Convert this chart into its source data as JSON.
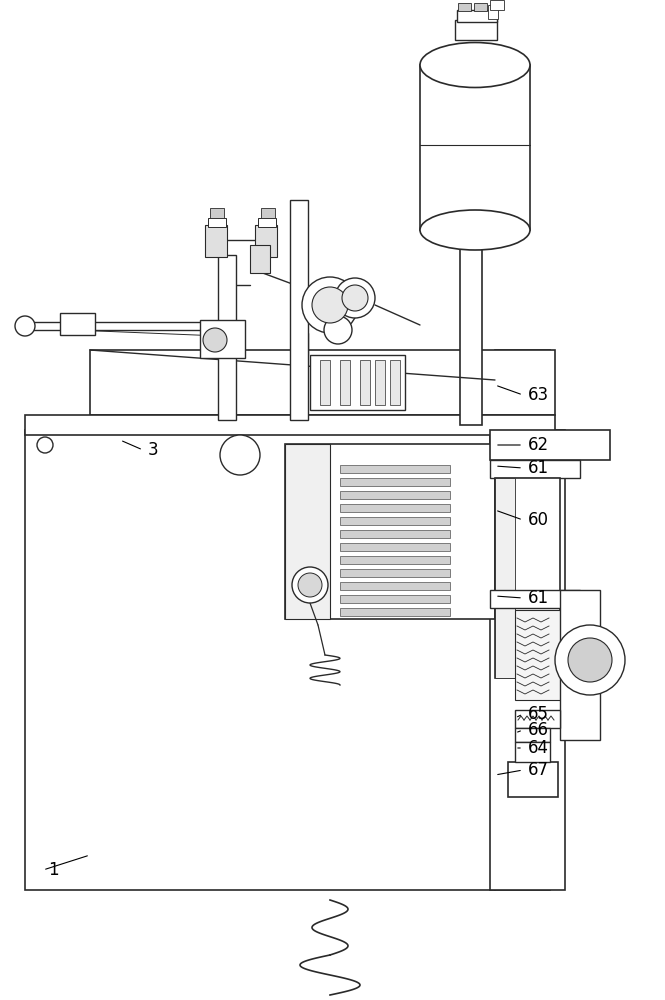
{
  "bg_color": "#ffffff",
  "line_color": "#2a2a2a",
  "lw": 1.0,
  "label_fontsize": 12,
  "fig_w": 6.65,
  "fig_h": 10.0
}
